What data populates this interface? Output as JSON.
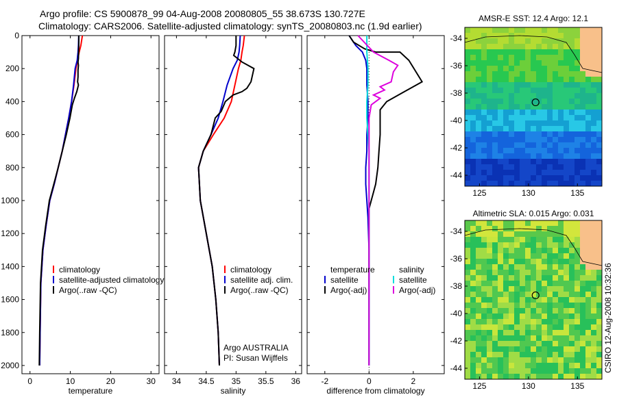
{
  "header": {
    "line1": "Argo profile: CS 5900878_99 04-Aug-2008 20080805_55 38.673S 130.727E",
    "line2": "Climatology: CARS2006. Satellite-adjusted climatology: synTS_20080803.nc (1.9d earlier)"
  },
  "side_stamp": "CSIRO 12-Aug-2008 10:32:36",
  "chart_data": [
    {
      "type": "line",
      "id": "temperature",
      "xlabel": "temperature",
      "ylabel": "",
      "xlim": [
        -2,
        32
      ],
      "ylim": [
        2050,
        0
      ],
      "x_ticks": [
        "0",
        "10",
        "20",
        "30"
      ],
      "x_tick_values": [
        0,
        10,
        20,
        30
      ],
      "y_ticks": [
        "0",
        "200",
        "400",
        "600",
        "800",
        "1000",
        "1200",
        "1400",
        "1600",
        "1800",
        "2000"
      ],
      "y_tick_values": [
        0,
        200,
        400,
        600,
        800,
        1000,
        1200,
        1400,
        1600,
        1800,
        2000
      ],
      "legend": {
        "placement": "lower-center",
        "entries": [
          "climatology",
          "satellite-adjusted climatology",
          "Argo(..raw -QC)"
        ]
      },
      "series": [
        {
          "name": "climatology",
          "color": "#ff0000",
          "x": [
            13.0,
            12.6,
            12.2,
            11.8,
            11.4,
            10.9,
            10.3,
            9.6,
            8.8,
            8.0,
            7.0,
            6.0,
            4.9,
            4.0,
            3.2,
            2.7,
            2.5,
            2.4
          ],
          "depth": [
            0,
            60,
            100,
            150,
            200,
            300,
            400,
            500,
            600,
            700,
            800,
            900,
            1000,
            1150,
            1300,
            1500,
            1800,
            2000
          ]
        },
        {
          "name": "satellite-adjusted climatology",
          "color": "#0000cc",
          "x": [
            12.1,
            12.0,
            11.9,
            11.7,
            11.2,
            10.8,
            10.3,
            9.6,
            8.8,
            8.0,
            7.0,
            6.0,
            4.9,
            4.0,
            3.2,
            2.7,
            2.5,
            2.4
          ],
          "depth": [
            0,
            60,
            100,
            150,
            200,
            300,
            400,
            500,
            600,
            700,
            800,
            900,
            1000,
            1150,
            1300,
            1500,
            1800,
            2000
          ]
        },
        {
          "name": "Argo(..raw -QC)",
          "color": "#000000",
          "x": [
            12.1,
            12.1,
            12.0,
            11.9,
            12.0,
            11.9,
            11.9,
            11.8,
            12.0,
            11.8,
            11.6,
            11.0,
            10.5,
            9.9,
            9.0,
            8.0,
            7.0,
            5.9,
            4.8,
            3.9,
            3.1,
            2.6,
            2.4,
            2.3
          ],
          "depth": [
            0,
            60,
            140,
            160,
            180,
            210,
            250,
            280,
            300,
            320,
            340,
            380,
            420,
            500,
            600,
            700,
            800,
            900,
            1000,
            1150,
            1300,
            1500,
            1800,
            2000
          ]
        }
      ]
    },
    {
      "type": "line",
      "id": "salinity",
      "xlabel": "salinity",
      "ylabel": "",
      "xlim": [
        33.8,
        36.1
      ],
      "ylim": [
        2050,
        0
      ],
      "x_ticks": [
        "34",
        "34.5",
        "35",
        "35.5",
        "36"
      ],
      "x_tick_values": [
        34,
        34.5,
        35,
        35.5,
        36
      ],
      "legend": {
        "placement": "lower-center",
        "entries": [
          "climatology",
          "satellite adj. clim.",
          "Argo(..raw -QC)"
        ]
      },
      "annotations": [
        "Argo AUSTRALIA",
        "PI: Susan Wijffels"
      ],
      "series": [
        {
          "name": "climatology",
          "color": "#ff0000",
          "x": [
            35.14,
            35.12,
            35.1,
            35.08,
            35.04,
            34.98,
            34.92,
            34.8,
            34.62,
            34.45,
            34.37,
            34.4,
            34.5,
            34.6,
            34.66,
            34.7,
            34.72
          ],
          "depth": [
            0,
            60,
            100,
            150,
            200,
            300,
            400,
            500,
            600,
            700,
            800,
            1000,
            1200,
            1400,
            1600,
            1800,
            2000
          ]
        },
        {
          "name": "satellite adj. clim.",
          "color": "#0000cc",
          "x": [
            35.07,
            35.06,
            35.05,
            35.02,
            34.95,
            34.85,
            34.78,
            34.7,
            34.58,
            34.45,
            34.37,
            34.4,
            34.5,
            34.6,
            34.66,
            34.7,
            34.72
          ],
          "depth": [
            0,
            60,
            100,
            150,
            200,
            300,
            400,
            500,
            600,
            700,
            800,
            1000,
            1200,
            1400,
            1600,
            1800,
            2000
          ]
        },
        {
          "name": "Argo(..raw -QC)",
          "color": "#000000",
          "x": [
            35.0,
            35.0,
            34.98,
            34.96,
            35.1,
            35.3,
            35.25,
            35.18,
            35.1,
            34.95,
            34.82,
            34.75,
            34.65,
            34.58,
            34.45,
            34.37,
            34.4,
            34.5,
            34.6,
            34.66,
            34.7,
            34.72
          ],
          "depth": [
            0,
            60,
            100,
            120,
            160,
            200,
            280,
            320,
            340,
            360,
            400,
            460,
            500,
            600,
            700,
            800,
            1000,
            1200,
            1400,
            1600,
            1800,
            2000
          ]
        }
      ]
    },
    {
      "type": "line",
      "id": "difference",
      "xlabel": "difference from climatology",
      "ylabel": "",
      "xlim": [
        -2.8,
        3.4
      ],
      "ylim": [
        2050,
        0
      ],
      "x_ticks": [
        "-2",
        "0",
        "2"
      ],
      "x_tick_values": [
        -2,
        0,
        2
      ],
      "legend": {
        "placement": "lower-center",
        "entries": [
          "temperature",
          "satellite",
          "Argo(-adj)",
          "salinity",
          "satellite",
          "Argo(-adj)"
        ]
      },
      "series": [
        {
          "name": "temperature satellite",
          "color": "#0000cc",
          "x": [
            -0.9,
            -0.6,
            -0.3,
            -0.15,
            -0.1,
            -0.1,
            -0.05,
            -0.05,
            -0.1,
            -0.1,
            -0.15,
            -0.15,
            -0.1,
            -0.05,
            0,
            0,
            0
          ],
          "depth": [
            0,
            60,
            100,
            150,
            200,
            300,
            400,
            500,
            600,
            700,
            800,
            900,
            1000,
            1100,
            1300,
            1600,
            2000
          ]
        },
        {
          "name": "temperature Argo(-adj)",
          "color": "#000000",
          "x": [
            -0.9,
            -0.7,
            -0.2,
            0.3,
            1.4,
            1.8,
            2.4,
            1.6,
            0.8,
            0.5,
            0.5,
            0.45,
            0.4,
            0.3,
            0.2,
            0.1,
            0.0,
            0.0,
            0.0,
            0.0,
            0.0,
            0.0
          ],
          "depth": [
            0,
            40,
            80,
            100,
            100,
            150,
            280,
            340,
            400,
            450,
            600,
            700,
            800,
            900,
            950,
            1000,
            1050,
            1100,
            1300,
            1600,
            1800,
            2000
          ]
        },
        {
          "name": "salinity satellite",
          "color": "#00dddd",
          "x": [
            -0.1,
            -0.1,
            -0.05,
            -0.05,
            -0.1,
            -0.1,
            -0.05,
            0,
            0,
            0,
            0,
            0
          ],
          "depth": [
            0,
            100,
            200,
            300,
            400,
            500,
            600,
            700,
            800,
            1000,
            1500,
            2000
          ]
        },
        {
          "name": "salinity Argo(-adj)",
          "color": "#dd00dd",
          "x": [
            -0.5,
            0.2,
            0.9,
            1.3,
            1.1,
            1.0,
            0.5,
            0.7,
            0.2,
            0.5,
            0.1,
            0.0,
            0.0
          ],
          "depth": [
            0,
            100,
            150,
            180,
            220,
            280,
            310,
            330,
            360,
            380,
            420,
            500,
            2000
          ]
        }
      ]
    },
    {
      "type": "heatmap",
      "id": "sst_map",
      "title": "AMSR-E SST: 12.4 Argo: 12.1",
      "xlim": [
        123.5,
        137.5
      ],
      "ylim": [
        -44.8,
        -33.2
      ],
      "x_ticks": [
        "125",
        "130",
        "135"
      ],
      "x_tick_values": [
        125,
        130,
        135
      ],
      "y_ticks": [
        "-34",
        "-36",
        "-38",
        "-40",
        "-42",
        "-44"
      ],
      "y_tick_values": [
        -34,
        -36,
        -38,
        -40,
        -42,
        -44
      ],
      "marker": {
        "lon": 130.727,
        "lat": -38.673
      }
    },
    {
      "type": "heatmap",
      "id": "sla_map",
      "title": "Altimetric SLA: 0.015 Argo: 0.031",
      "xlim": [
        123.5,
        137.5
      ],
      "ylim": [
        -44.8,
        -33.2
      ],
      "x_ticks": [
        "125",
        "130",
        "135"
      ],
      "x_tick_values": [
        125,
        130,
        135
      ],
      "y_ticks": [
        "-34",
        "-36",
        "-38",
        "-40",
        "-42",
        "-44"
      ],
      "y_tick_values": [
        -34,
        -36,
        -38,
        -40,
        -42,
        -44
      ],
      "marker": {
        "lon": 130.727,
        "lat": -38.673
      }
    }
  ]
}
